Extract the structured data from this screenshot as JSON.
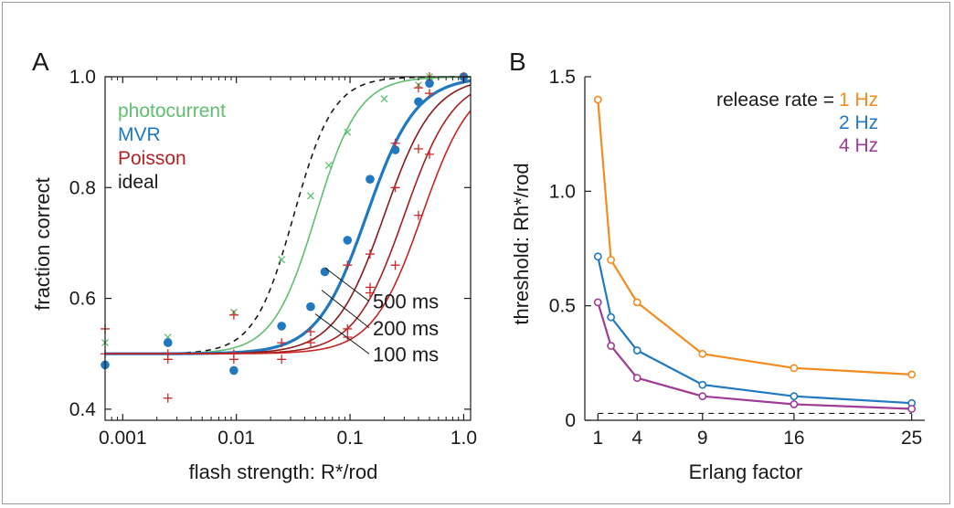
{
  "panel_labels": {
    "a": "A",
    "b": "B"
  },
  "chart_data": [
    {
      "type": "scatter",
      "xlabel": "flash strength: R*/rod",
      "ylabel": "fraction correct",
      "xscale": "log",
      "xlim": [
        0.0007,
        1.15
      ],
      "ylim": [
        0.38,
        1.0
      ],
      "xticks": [
        0.001,
        0.01,
        0.1,
        1.0
      ],
      "xtick_labels": [
        "0.001",
        "0.01",
        "0.1",
        "1.0"
      ],
      "yticks": [
        0.4,
        0.6,
        0.8,
        1.0
      ],
      "ytick_labels": [
        "0.4",
        "0.6",
        "0.8",
        "1.0"
      ],
      "grid": false,
      "legend_position": "top-left",
      "legend": [
        {
          "label": "photocurrent",
          "color": "#5fbf6e"
        },
        {
          "label": "MVR",
          "color": "#1f78c0"
        },
        {
          "label": "Poisson",
          "color": "#b22222"
        },
        {
          "label": "ideal",
          "color": "#1a1a1a"
        }
      ],
      "annotations": [
        "500 ms",
        "200 ms",
        "100 ms"
      ],
      "series": [
        {
          "name": "ideal",
          "style": "dashed",
          "color": "#1a1a1a",
          "curve": {
            "x50": 0.032,
            "slope": 2.5
          }
        },
        {
          "name": "photocurrent",
          "color": "#5fbf6e",
          "curve": {
            "x50": 0.05,
            "slope": 2.3
          },
          "points": [
            [
              0.0007,
              0.52
            ],
            [
              0.0025,
              0.53
            ],
            [
              0.0095,
              0.575
            ],
            [
              0.025,
              0.67
            ],
            [
              0.045,
              0.785
            ],
            [
              0.065,
              0.84
            ],
            [
              0.095,
              0.9
            ],
            [
              0.2,
              0.96
            ],
            [
              0.4,
              0.985
            ],
            [
              0.5,
              1.0
            ],
            [
              1.0,
              1.0
            ]
          ]
        },
        {
          "name": "MVR",
          "color": "#1f78c0",
          "curve": {
            "x50": 0.14,
            "slope": 2.0
          },
          "points": [
            [
              0.0007,
              0.48
            ],
            [
              0.0025,
              0.52
            ],
            [
              0.0095,
              0.47
            ],
            [
              0.025,
              0.55
            ],
            [
              0.045,
              0.585
            ],
            [
              0.06,
              0.648
            ],
            [
              0.095,
              0.705
            ],
            [
              0.15,
              0.815
            ],
            [
              0.25,
              0.868
            ],
            [
              0.4,
              0.955
            ],
            [
              0.5,
              0.988
            ],
            [
              1.0,
              1.0
            ]
          ]
        },
        {
          "name": "500 ms",
          "color": "#8b1a1a",
          "curve": {
            "x50": 0.2,
            "slope": 2.0
          }
        },
        {
          "name": "200 ms",
          "color": "#a42020",
          "curve": {
            "x50": 0.3,
            "slope": 2.0
          }
        },
        {
          "name": "100 ms",
          "color": "#c72525",
          "curve": {
            "x50": 0.43,
            "slope": 2.0
          }
        },
        {
          "name": "Poisson",
          "color": "#cc2a2a",
          "points": [
            [
              0.0007,
              0.545
            ],
            [
              0.0007,
              0.5
            ],
            [
              0.0025,
              0.5
            ],
            [
              0.0025,
              0.49
            ],
            [
              0.0025,
              0.42
            ],
            [
              0.0095,
              0.57
            ],
            [
              0.0095,
              0.5
            ],
            [
              0.0095,
              0.49
            ],
            [
              0.025,
              0.52
            ],
            [
              0.025,
              0.49
            ],
            [
              0.045,
              0.54
            ],
            [
              0.045,
              0.52
            ],
            [
              0.095,
              0.66
            ],
            [
              0.095,
              0.545
            ],
            [
              0.095,
              0.53
            ],
            [
              0.15,
              0.68
            ],
            [
              0.15,
              0.62
            ],
            [
              0.15,
              0.61
            ],
            [
              0.25,
              0.88
            ],
            [
              0.25,
              0.8
            ],
            [
              0.25,
              0.66
            ],
            [
              0.4,
              0.98
            ],
            [
              0.4,
              0.87
            ],
            [
              0.4,
              0.75
            ],
            [
              0.5,
              1.0
            ],
            [
              0.5,
              0.97
            ],
            [
              0.5,
              0.86
            ],
            [
              1.0,
              1.0
            ]
          ]
        }
      ]
    },
    {
      "type": "line",
      "xlabel": "Erlang factor",
      "ylabel": "threshold: Rh*/rod",
      "xlim": [
        0,
        26
      ],
      "ylim": [
        0,
        1.5
      ],
      "xticks": [
        1,
        4,
        9,
        16,
        25
      ],
      "xtick_labels": [
        "1",
        "4",
        "9",
        "16",
        "25"
      ],
      "yticks": [
        0,
        0.5,
        1.0,
        1.5
      ],
      "ytick_labels": [
        "0",
        "0.5",
        "1.0",
        "1.5"
      ],
      "grid": false,
      "legend_position": "top-right",
      "legend_title": "release rate =",
      "x": [
        1,
        2,
        4,
        9,
        16,
        25
      ],
      "series": [
        {
          "name": "1 Hz",
          "color": "#f28c1e",
          "values": [
            1.4,
            0.7,
            0.515,
            0.29,
            0.228,
            0.2
          ]
        },
        {
          "name": "2 Hz",
          "color": "#1f78c0",
          "values": [
            0.715,
            0.45,
            0.305,
            0.155,
            0.105,
            0.075
          ]
        },
        {
          "name": "4 Hz",
          "color": "#a03c96",
          "values": [
            0.515,
            0.325,
            0.185,
            0.105,
            0.07,
            0.05
          ]
        }
      ],
      "reference_line": {
        "style": "dashed",
        "y": 0.03,
        "color": "#1a1a1a"
      }
    }
  ]
}
